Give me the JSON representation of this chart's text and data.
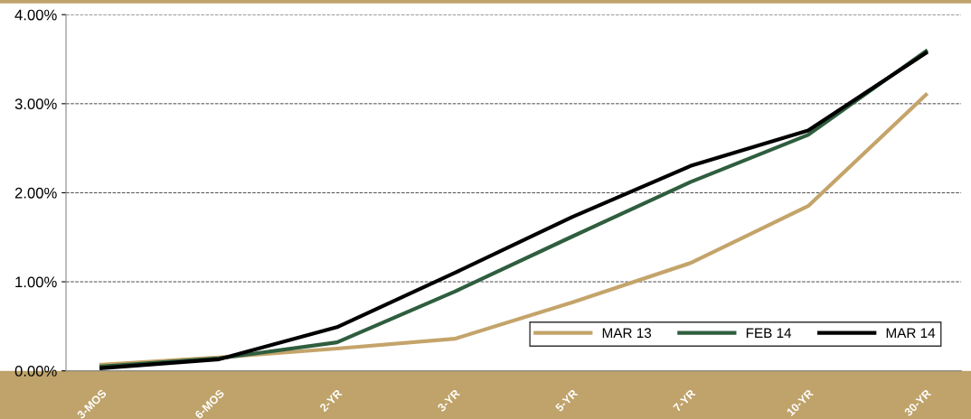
{
  "chart_data": {
    "type": "line",
    "categories": [
      "3-MOS",
      "6-MOS",
      "2-YR",
      "3-YR",
      "5-YR",
      "7-YR",
      "10-YR",
      "30-YR"
    ],
    "series": [
      {
        "name": "MAR 13",
        "color": "#c4a46a",
        "values": [
          0.07,
          0.15,
          0.25,
          0.36,
          0.77,
          1.21,
          1.85,
          3.1
        ]
      },
      {
        "name": "FEB 14",
        "color": "#2e5e3e",
        "values": [
          0.05,
          0.14,
          0.32,
          0.89,
          1.51,
          2.12,
          2.65,
          3.59
        ]
      },
      {
        "name": "MAR 14",
        "color": "#000000",
        "values": [
          0.03,
          0.13,
          0.49,
          1.1,
          1.73,
          2.3,
          2.7,
          3.57
        ]
      }
    ],
    "ylim": [
      0,
      4
    ],
    "yticks": [
      {
        "value": 0,
        "label": "0.00%"
      },
      {
        "value": 1,
        "label": "1.00%"
      },
      {
        "value": 2,
        "label": "2.00%"
      },
      {
        "value": 3,
        "label": "3.00%"
      },
      {
        "value": 4,
        "label": "4.00%"
      }
    ],
    "grid": "y",
    "legend": "bottom right",
    "marker": "none",
    "line_style": "solid"
  }
}
